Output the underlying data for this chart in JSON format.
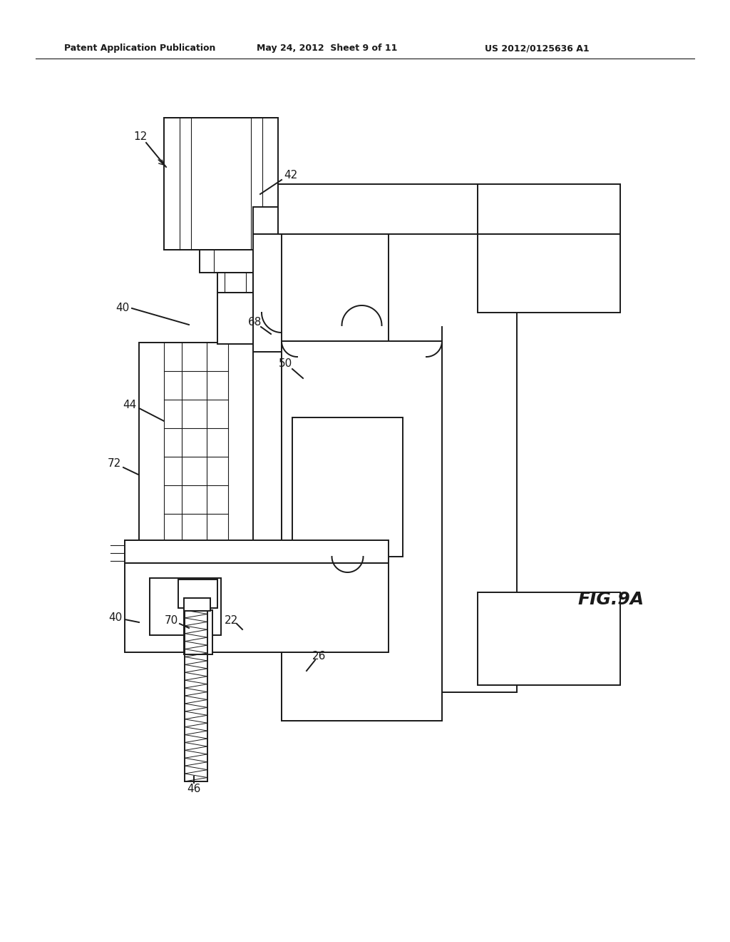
{
  "header_left": "Patent Application Publication",
  "header_mid": "May 24, 2012  Sheet 9 of 11",
  "header_right": "US 2012/0125636 A1",
  "figure_label": "FIG.9A",
  "bg_color": "#ffffff",
  "line_color": "#1a1a1a",
  "lw": 1.4
}
